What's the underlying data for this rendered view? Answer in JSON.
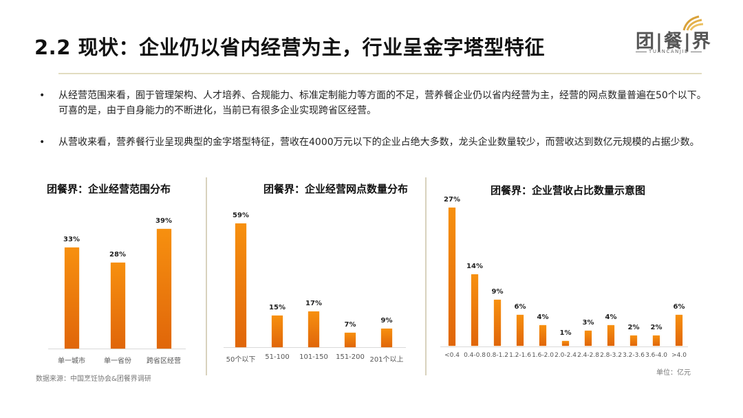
{
  "header": {
    "title": "2.2 现状：企业仍以省内经营为主，行业呈金字塔型特征",
    "logo_text": "团|餐|界",
    "logo_sub": "TUANCANJIE"
  },
  "bullets": [
    {
      "text": "从经营范围来看，囿于管理架构、人才培养、合规能力、标准定制能力等方面的不足，营养餐企业仍以省内经营为主，经营的网点数量普遍在50个以下。可喜的是，由于自身能力的不断进化，当前已有很多企业实现跨省区经营。"
    },
    {
      "text": "从营收来看，营养餐行业呈现典型的金字塔型特征，营收在4000万元以下的企业占绝大多数，龙头企业数量较少，而营收达到数亿元规模的占据少数。"
    }
  ],
  "footer": {
    "source": "数据来源：中国烹饪协会&团餐界调研",
    "unit": "单位：亿元"
  },
  "colors": {
    "bar_top": "#f7900f",
    "bar_bottom": "#e0660a",
    "separator": "#e2dcc0"
  },
  "chart_data": [
    {
      "type": "bar",
      "title": "团餐界：企业经营范围分布",
      "categories": [
        "单一城市",
        "单一省份",
        "跨省区经营"
      ],
      "values": [
        33,
        28,
        39
      ],
      "value_labels": [
        "33%",
        "28%",
        "39%"
      ],
      "xlabel": "",
      "ylabel": "",
      "grid": false,
      "legend": "none"
    },
    {
      "type": "bar",
      "title": "团餐界：企业经营网点数量分布",
      "categories": [
        "50个以下",
        "51-100",
        "101-150",
        "151-200",
        "201个以上"
      ],
      "values": [
        59,
        15,
        17,
        7,
        9
      ],
      "value_labels": [
        "59%",
        "15%",
        "17%",
        "7%",
        "9%"
      ],
      "xlabel": "",
      "ylabel": "",
      "grid": false,
      "legend": "none"
    },
    {
      "type": "bar",
      "title": "团餐界：企业营收占比数量示意图",
      "categories": [
        "<0.4",
        "0.4-0.8",
        "0.8-1.2",
        "1.2-1.6",
        "1.6-2.0",
        "2.0-2.4",
        "2.4-2.8",
        "2.8-3.2",
        "3.2-3.6",
        "3.6-4.0",
        ">4.0"
      ],
      "values": [
        27,
        14,
        9,
        6,
        4,
        1,
        3,
        4,
        2,
        2,
        6
      ],
      "value_labels": [
        "27%",
        "14%",
        "9%",
        "6%",
        "4%",
        "1%",
        "3%",
        "4%",
        "2%",
        "2%",
        "6%"
      ],
      "xlabel": "",
      "ylabel": "",
      "unit": "单位：亿元",
      "grid": false,
      "legend": "none"
    }
  ]
}
